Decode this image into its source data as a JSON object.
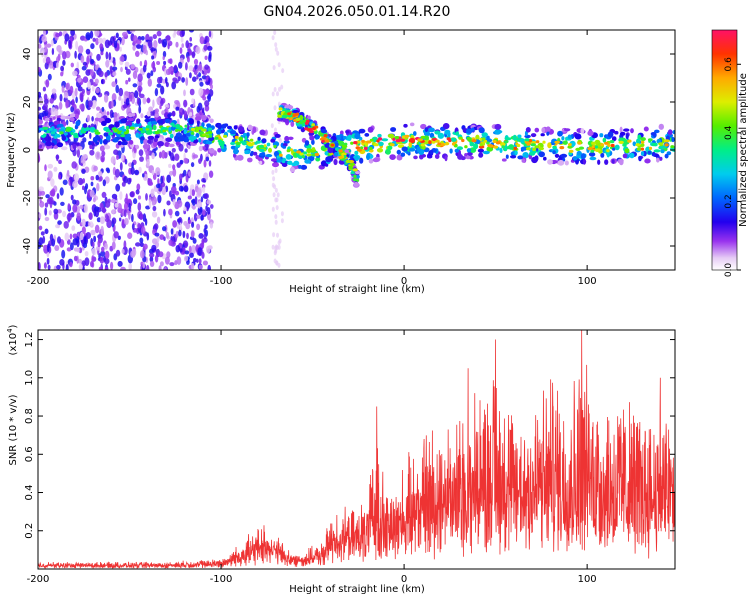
{
  "title": "GN04.2026.050.01.14.R20",
  "chart_data": [
    {
      "type": "heatmap",
      "name": "spectrogram",
      "xlabel": "Height of straight line (km)",
      "ylabel": "Frequency (Hz)",
      "xlim": [
        -200,
        148
      ],
      "ylim": [
        -50,
        50
      ],
      "xticks": [
        -200,
        -100,
        0,
        100
      ],
      "yticks": [
        -40,
        -20,
        0,
        20,
        40
      ],
      "colorbar": {
        "label": "Normalized spectral amplitude",
        "range": [
          0,
          0.7
        ],
        "ticks": [
          0.0,
          0.2,
          0.4,
          0.6
        ],
        "tick_labels": [
          "0.0",
          "0.2",
          "0.4",
          "0.6"
        ]
      },
      "features": [
        {
          "name": "main frequency band",
          "x": [
            -200,
            -150,
            -120,
            -100,
            -80,
            -60,
            -40,
            -20,
            0,
            50,
            100,
            148
          ],
          "y": [
            7,
            8,
            9,
            5,
            2,
            -2,
            0,
            2,
            4,
            3,
            1,
            3
          ],
          "amplitude": [
            0.3,
            0.35,
            0.4,
            0.45,
            0.4,
            0.45,
            0.5,
            0.6,
            0.55,
            0.5,
            0.5,
            0.45
          ]
        },
        {
          "name": "descending streak",
          "x": [
            -68,
            -60,
            -50,
            -40,
            -30,
            -25
          ],
          "y": [
            16,
            14,
            9,
            3,
            -5,
            -13
          ],
          "amplitude": [
            0.45,
            0.5,
            0.55,
            0.5,
            0.45,
            0.4
          ]
        }
      ]
    },
    {
      "type": "line",
      "name": "snr",
      "xlabel": "Height of straight line (km)",
      "ylabel": "SNR (10 * v/v)",
      "multiplier_label": "(x10",
      "multiplier_exponent": "4",
      "multiplier_close": ")",
      "xlim": [
        -200,
        148
      ],
      "ylim": [
        0,
        1.25
      ],
      "xticks": [
        -200,
        -100,
        0,
        100
      ],
      "yticks": [
        0.2,
        0.4,
        0.6,
        0.8,
        1.0,
        1.2
      ],
      "ytick_labels": [
        "0.2",
        "0.4",
        "0.6",
        "0.8",
        "1.0",
        "1.2"
      ],
      "color": "#ee3333",
      "envelope": {
        "x": [
          -200,
          -130,
          -100,
          -95,
          -90,
          -80,
          -75,
          -70,
          -60,
          -45,
          -40,
          -35,
          -30,
          -20,
          -15,
          -10,
          -5,
          0,
          10,
          20,
          30,
          40,
          50,
          60,
          70,
          80,
          90,
          97,
          110,
          120,
          130,
          140,
          148
        ],
        "max": [
          0.04,
          0.04,
          0.06,
          0.1,
          0.15,
          0.24,
          0.26,
          0.2,
          0.08,
          0.15,
          0.3,
          0.35,
          0.33,
          0.4,
          0.85,
          0.45,
          0.5,
          0.6,
          0.8,
          0.9,
          0.9,
          1.05,
          1.2,
          0.95,
          1.0,
          1.15,
          1.1,
          1.25,
          1.0,
          1.05,
          0.95,
          1.0,
          0.9
        ],
        "base": [
          0.02,
          0.02,
          0.03,
          0.05,
          0.07,
          0.1,
          0.12,
          0.09,
          0.05,
          0.07,
          0.15,
          0.18,
          0.16,
          0.18,
          0.22,
          0.2,
          0.22,
          0.25,
          0.3,
          0.32,
          0.33,
          0.35,
          0.36,
          0.35,
          0.35,
          0.36,
          0.36,
          0.37,
          0.35,
          0.34,
          0.33,
          0.33,
          0.32
        ]
      },
      "spikes": [
        {
          "x": -15,
          "y": 0.85
        },
        {
          "x": 35,
          "y": 1.05
        },
        {
          "x": 50,
          "y": 1.2
        },
        {
          "x": 97,
          "y": 1.25
        },
        {
          "x": 140,
          "y": 1.0
        }
      ]
    }
  ]
}
